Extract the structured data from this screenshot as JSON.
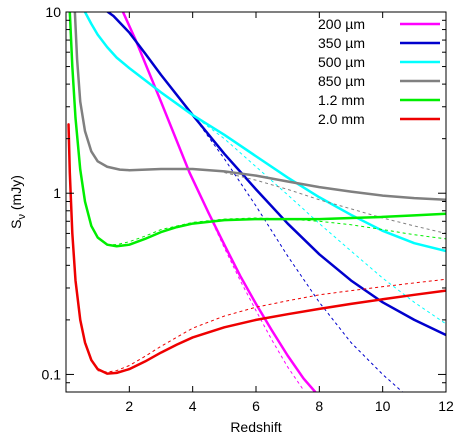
{
  "chart_data": {
    "type": "line",
    "title": "",
    "xlabel": "Redshift",
    "ylabel_main": "S",
    "ylabel_sub": "ν",
    "ylabel_unit": " (mJy)",
    "xlim": [
      0,
      12
    ],
    "ylim": [
      0.08,
      10
    ],
    "yscale": "log",
    "grid": false,
    "legend_position": "top-right",
    "x_ticks": [
      2,
      4,
      6,
      8,
      10,
      12
    ],
    "x_tick_labels": [
      "2",
      "4",
      "6",
      "8",
      "10",
      "12"
    ],
    "y_ticks": [
      0.1,
      1,
      10
    ],
    "y_tick_labels": [
      "0.1",
      "1",
      "10"
    ],
    "series": [
      {
        "name": "200 µm",
        "color": "#ff00ff",
        "solid": {
          "x": [
            1.8,
            2.2,
            3.0,
            3.9,
            4.5,
            5.0,
            5.5,
            6.0,
            6.5,
            7.0,
            7.5,
            7.9
          ],
          "y": [
            10.0,
            7.0,
            3.2,
            1.3,
            0.78,
            0.52,
            0.35,
            0.245,
            0.175,
            0.127,
            0.095,
            0.079
          ]
        },
        "dashed": {
          "x": [
            2.2,
            3.0,
            3.9,
            4.5,
            5.0,
            5.5,
            6.0,
            6.5,
            7.0,
            7.5
          ],
          "y": [
            7.0,
            3.2,
            1.3,
            0.77,
            0.5,
            0.33,
            0.225,
            0.155,
            0.11,
            0.082
          ]
        }
      },
      {
        "name": "350 µm",
        "color": "#0000cd",
        "solid": {
          "x": [
            1.0,
            1.5,
            2.0,
            2.5,
            3.0,
            4.0,
            5.0,
            6.0,
            7.0,
            8.0,
            9.0,
            10.0,
            11.0,
            12.0
          ],
          "y": [
            11.0,
            9.5,
            7.7,
            5.9,
            4.5,
            2.7,
            1.65,
            1.05,
            0.68,
            0.46,
            0.33,
            0.25,
            0.2,
            0.165
          ]
        },
        "dashed": {
          "x": [
            4.0,
            5.0,
            6.0,
            7.0,
            8.0,
            9.0,
            10.0,
            11.0
          ],
          "y": [
            2.7,
            1.55,
            0.85,
            0.45,
            0.25,
            0.15,
            0.1,
            0.07
          ]
        }
      },
      {
        "name": "500 µm",
        "color": "#00ffff",
        "solid": {
          "x": [
            0.6,
            0.8,
            1.0,
            1.3,
            1.6,
            2.0,
            2.5,
            3.0,
            4.0,
            5.0,
            6.0,
            7.0,
            8.0,
            9.0,
            10.0,
            11.0,
            12.0
          ],
          "y": [
            10.0,
            8.6,
            7.5,
            6.4,
            5.6,
            4.9,
            4.2,
            3.6,
            2.7,
            2.1,
            1.6,
            1.22,
            0.95,
            0.76,
            0.62,
            0.53,
            0.48
          ]
        },
        "dashed": {
          "x": [
            4.0,
            5.0,
            6.0,
            7.0,
            8.0,
            9.0,
            10.0,
            11.0,
            12.0
          ],
          "y": [
            2.7,
            2.0,
            1.4,
            0.98,
            0.68,
            0.48,
            0.34,
            0.25,
            0.19
          ]
        }
      },
      {
        "name": "850 µm",
        "color": "#808080",
        "solid": {
          "x": [
            0.28,
            0.35,
            0.45,
            0.6,
            0.8,
            1.0,
            1.3,
            1.7,
            2.0,
            2.5,
            3.0,
            4.0,
            5.0,
            6.0,
            7.0,
            8.0,
            9.0,
            10.0,
            11.0,
            12.0
          ],
          "y": [
            10.0,
            5.5,
            3.2,
            2.2,
            1.7,
            1.5,
            1.4,
            1.35,
            1.34,
            1.35,
            1.36,
            1.36,
            1.32,
            1.25,
            1.16,
            1.08,
            1.02,
            0.97,
            0.94,
            0.92
          ]
        },
        "dashed": {
          "x": [
            5.0,
            6.0,
            7.0,
            8.0,
            9.0,
            10.0,
            11.0,
            12.0
          ],
          "y": [
            1.3,
            1.18,
            1.05,
            0.92,
            0.82,
            0.73,
            0.66,
            0.6
          ]
        }
      },
      {
        "name": "1.2 mm",
        "color": "#00ee00",
        "solid": {
          "x": [
            0.12,
            0.2,
            0.3,
            0.45,
            0.6,
            0.8,
            1.0,
            1.3,
            1.6,
            2.0,
            2.5,
            3.0,
            3.5,
            4.0,
            5.0,
            6.0,
            7.0,
            8.0,
            9.0,
            10.0,
            11.0,
            12.0
          ],
          "y": [
            10.0,
            5.0,
            2.6,
            1.35,
            0.9,
            0.66,
            0.57,
            0.52,
            0.51,
            0.52,
            0.56,
            0.61,
            0.65,
            0.68,
            0.71,
            0.72,
            0.72,
            0.72,
            0.73,
            0.74,
            0.755,
            0.77
          ]
        },
        "dashed": {
          "x": [
            1.3,
            1.6,
            2.0,
            2.5,
            3.0,
            4.0,
            5.0,
            6.0,
            7.0,
            8.0,
            9.0,
            10.0,
            11.0,
            12.0
          ],
          "y": [
            0.52,
            0.52,
            0.54,
            0.58,
            0.63,
            0.69,
            0.72,
            0.73,
            0.72,
            0.7,
            0.67,
            0.63,
            0.59,
            0.56
          ]
        }
      },
      {
        "name": "2.0 mm",
        "color": "#ee0000",
        "solid": {
          "x": [
            0.08,
            0.12,
            0.2,
            0.3,
            0.45,
            0.6,
            0.8,
            1.0,
            1.3,
            1.6,
            2.0,
            2.5,
            3.0,
            3.5,
            4.0,
            5.0,
            6.0,
            7.0,
            8.0,
            9.0,
            10.0,
            11.0,
            12.0
          ],
          "y": [
            2.4,
            1.3,
            0.6,
            0.33,
            0.2,
            0.15,
            0.12,
            0.107,
            0.101,
            0.102,
            0.107,
            0.118,
            0.132,
            0.146,
            0.16,
            0.182,
            0.2,
            0.215,
            0.23,
            0.245,
            0.26,
            0.275,
            0.29
          ]
        },
        "dashed": {
          "x": [
            1.0,
            1.3,
            1.6,
            2.0,
            2.5,
            3.0,
            4.0,
            5.0,
            6.0,
            7.0,
            8.0,
            9.0,
            10.0,
            11.0,
            12.0
          ],
          "y": [
            0.105,
            0.103,
            0.105,
            0.112,
            0.126,
            0.143,
            0.18,
            0.21,
            0.235,
            0.255,
            0.275,
            0.29,
            0.305,
            0.32,
            0.335
          ]
        }
      }
    ]
  }
}
